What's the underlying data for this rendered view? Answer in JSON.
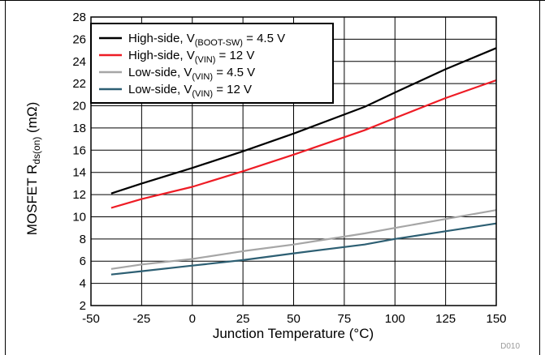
{
  "figure_id": "D010",
  "chart_data": {
    "type": "line",
    "xlabel": "Junction Temperature (°C)",
    "ylabel": {
      "main": "MOSFET R",
      "sub": "ds(on)",
      "unit": " (mΩ)"
    },
    "xlim": [
      -50,
      150
    ],
    "ylim": [
      2,
      28
    ],
    "x_ticks": [
      -50,
      -25,
      0,
      25,
      50,
      75,
      100,
      125,
      150
    ],
    "y_ticks": [
      2,
      4,
      6,
      8,
      10,
      12,
      14,
      16,
      18,
      20,
      22,
      24,
      26,
      28
    ],
    "grid": true,
    "legend_position": "top-left",
    "series": [
      {
        "name": "High-side, V(BOOT-SW) = 4.5 V",
        "legend": {
          "pre": "High-side, V",
          "sub": "(BOOT-SW)",
          "post": " = 4.5 V"
        },
        "color": "#000000",
        "x": [
          -40,
          -25,
          0,
          25,
          50,
          85,
          100,
          125,
          150
        ],
        "y": [
          12.1,
          13.0,
          14.4,
          15.9,
          17.5,
          19.9,
          21.2,
          23.3,
          25.2
        ]
      },
      {
        "name": "High-side, V(VIN) = 12 V",
        "legend": {
          "pre": "High-side, V",
          "sub": "(VIN)",
          "post": " = 12 V"
        },
        "color": "#ee1c25",
        "x": [
          -40,
          -25,
          0,
          25,
          50,
          85,
          100,
          125,
          150
        ],
        "y": [
          10.8,
          11.6,
          12.7,
          14.1,
          15.6,
          17.8,
          18.9,
          20.7,
          22.3
        ]
      },
      {
        "name": "Low-side, V(VIN) = 4.5 V",
        "legend": {
          "pre": "Low-side, V",
          "sub": "(VIN)",
          "post": " = 4.5 V"
        },
        "color": "#a6a6a6",
        "x": [
          -40,
          -25,
          0,
          25,
          50,
          85,
          100,
          125,
          150
        ],
        "y": [
          5.3,
          5.7,
          6.2,
          6.9,
          7.5,
          8.5,
          9.0,
          9.8,
          10.6
        ]
      },
      {
        "name": "Low-side, V(VIN) = 12 V",
        "legend": {
          "pre": "Low-side,  V",
          "sub": "(VIN)",
          "post": " = 12 V"
        },
        "color": "#2d5f73",
        "x": [
          -40,
          -25,
          0,
          25,
          50,
          85,
          100,
          125,
          150
        ],
        "y": [
          4.8,
          5.1,
          5.6,
          6.1,
          6.7,
          7.5,
          8.0,
          8.7,
          9.4
        ]
      }
    ]
  }
}
